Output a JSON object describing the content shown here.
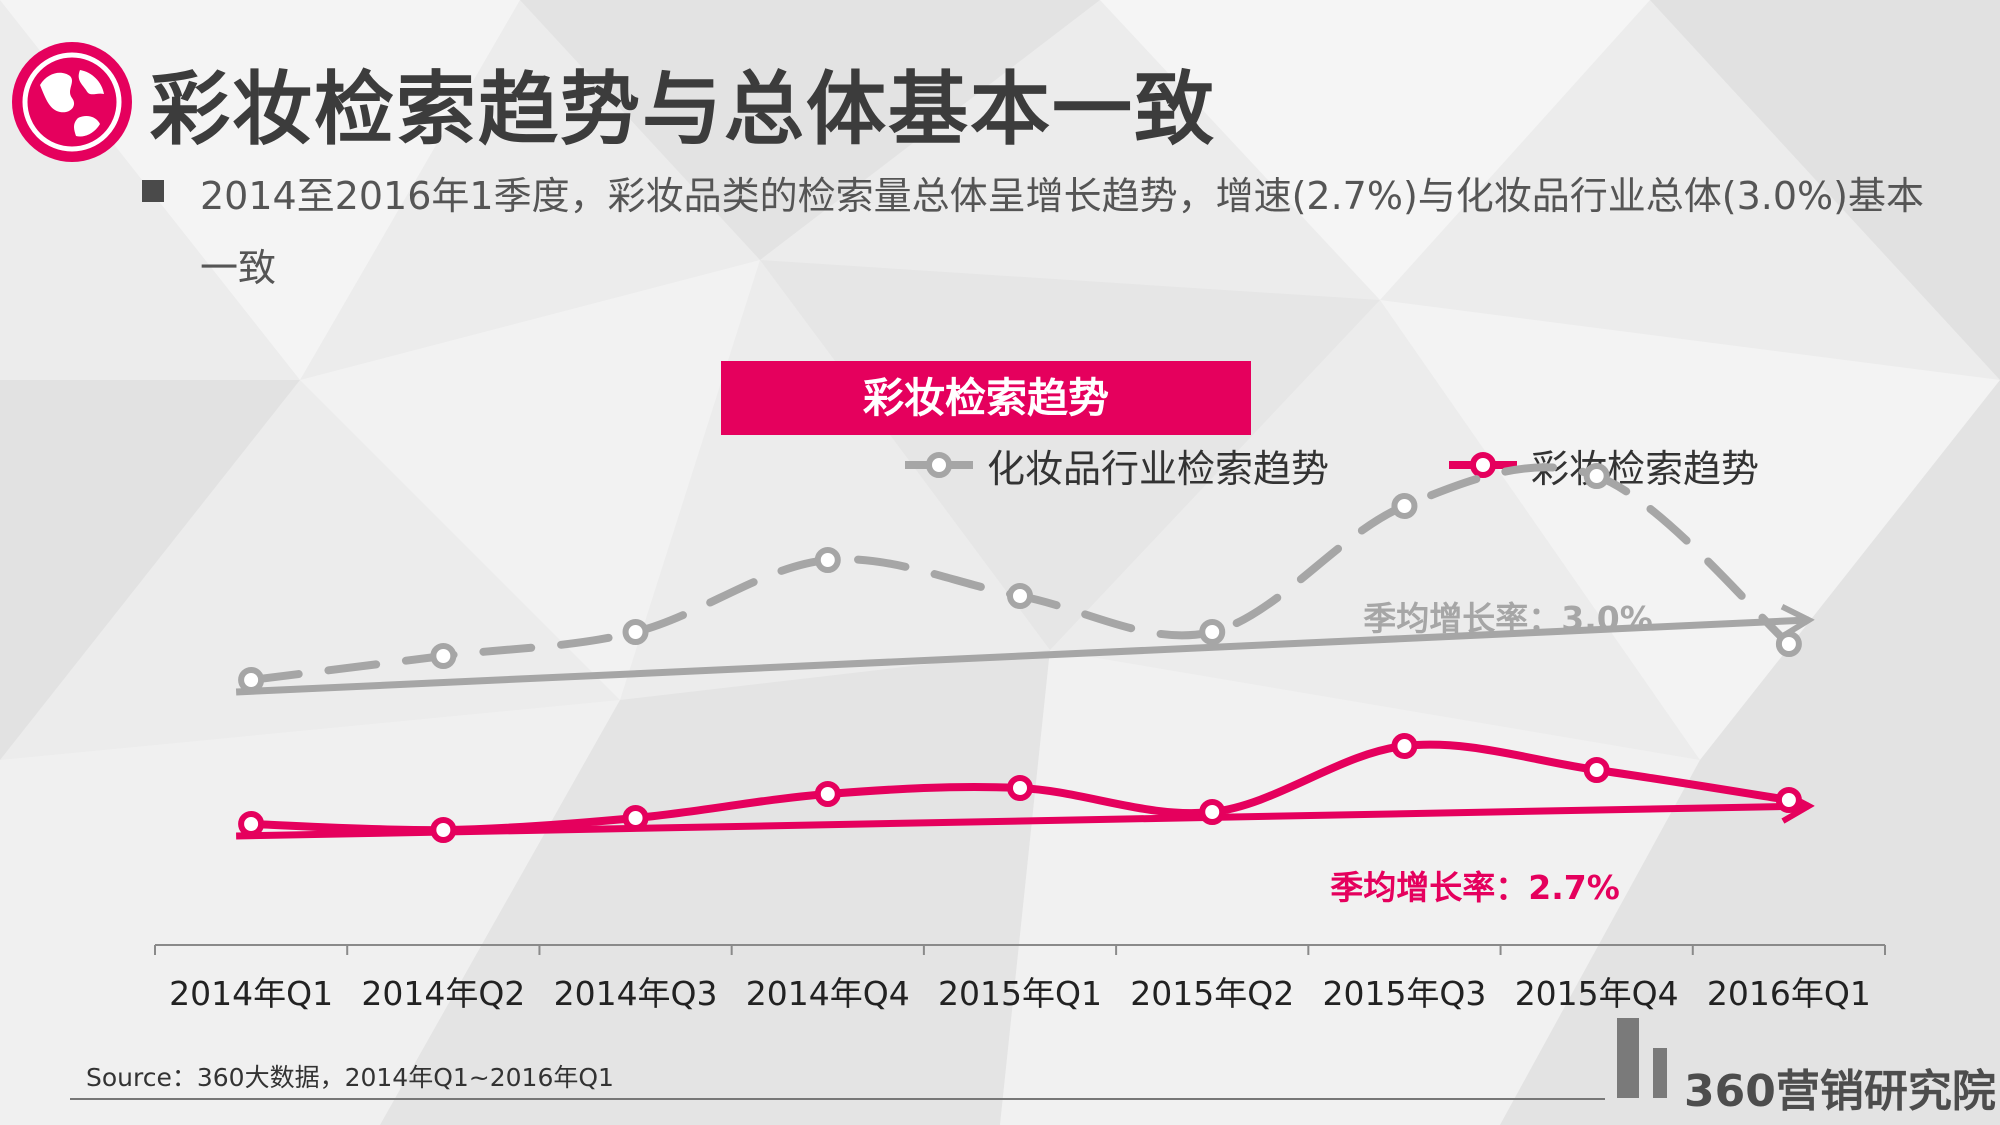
{
  "page": {
    "title": "彩妆检索趋势与总体基本一致",
    "bullet": "2014至2016年1季度，彩妆品类的检索量总体呈增长趋势，增速(2.7%)与化妆品行业总体(3.0%)基本一致",
    "chart_title": "彩妆检索趋势",
    "source": "Source：360大数据，2014年Q1~2016年Q1",
    "brand": "360营销研究院",
    "icon": "globe-icon"
  },
  "colors": {
    "accent": "#e5005d",
    "gray_series": "#a6a6a6",
    "pink_series": "#e5005d",
    "title_text": "#3c3c3c"
  },
  "chart_data": {
    "type": "line",
    "categories": [
      "2014年Q1",
      "2014年Q2",
      "2014年Q3",
      "2014年Q4",
      "2015年Q1",
      "2015年Q2",
      "2015年Q3",
      "2015年Q4",
      "2016年Q1"
    ],
    "series": [
      {
        "name": "化妆品行业检索趋势",
        "values": [
          100,
          104,
          108,
          120,
          114,
          108,
          129,
          134,
          106
        ],
        "color": "#a6a6a6",
        "style": "dashed",
        "trend_label": "季均增长率：3.0%"
      },
      {
        "name": "彩妆检索趋势",
        "values": [
          76,
          75,
          77,
          81,
          82,
          78,
          89,
          85,
          80
        ],
        "color": "#e5005d",
        "style": "solid",
        "trend_label": "季均增长率：2.7%"
      }
    ],
    "trendlines": [
      {
        "series": "化妆品行业检索趋势",
        "start": 98,
        "end": 110
      },
      {
        "series": "彩妆检索趋势",
        "start": 74,
        "end": 79
      }
    ],
    "ylim": [
      60,
      140
    ],
    "y_axis_visible": false,
    "grid": false,
    "legend_position": "top-right"
  }
}
